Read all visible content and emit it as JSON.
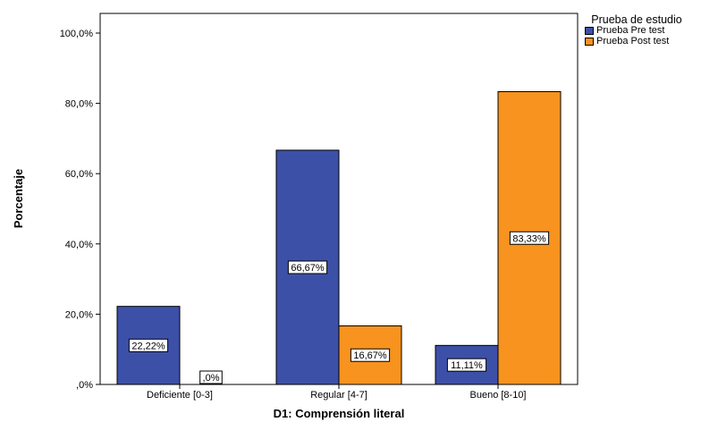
{
  "chart_data": {
    "type": "bar",
    "xlabel": "D1: Comprensión literal",
    "ylabel": "Porcentaje",
    "ylim": [
      0,
      100
    ],
    "yticks": [
      {
        "value": 0,
        "label": ",0%"
      },
      {
        "value": 20,
        "label": "20,0%"
      },
      {
        "value": 40,
        "label": "40,0%"
      },
      {
        "value": 60,
        "label": "60,0%"
      },
      {
        "value": 80,
        "label": "80,0%"
      },
      {
        "value": 100,
        "label": "100,0%"
      }
    ],
    "categories": [
      "Deficiente [0-3]",
      "Regular [4-7]",
      "Bueno [8-10]"
    ],
    "series": [
      {
        "name": "Prueba Pre test",
        "color": "#3d50a8",
        "values": [
          22.22,
          66.67,
          11.11
        ],
        "labels": [
          "22,22%",
          "66,67%",
          "11,11%"
        ]
      },
      {
        "name": "Prueba Post test",
        "color": "#f7931e",
        "values": [
          0,
          16.67,
          83.33
        ],
        "labels": [
          ",0%",
          "16,67%",
          "83,33%"
        ]
      }
    ],
    "legend": {
      "title": "Prueba de estudio",
      "position": "top-right"
    },
    "grid": false
  }
}
